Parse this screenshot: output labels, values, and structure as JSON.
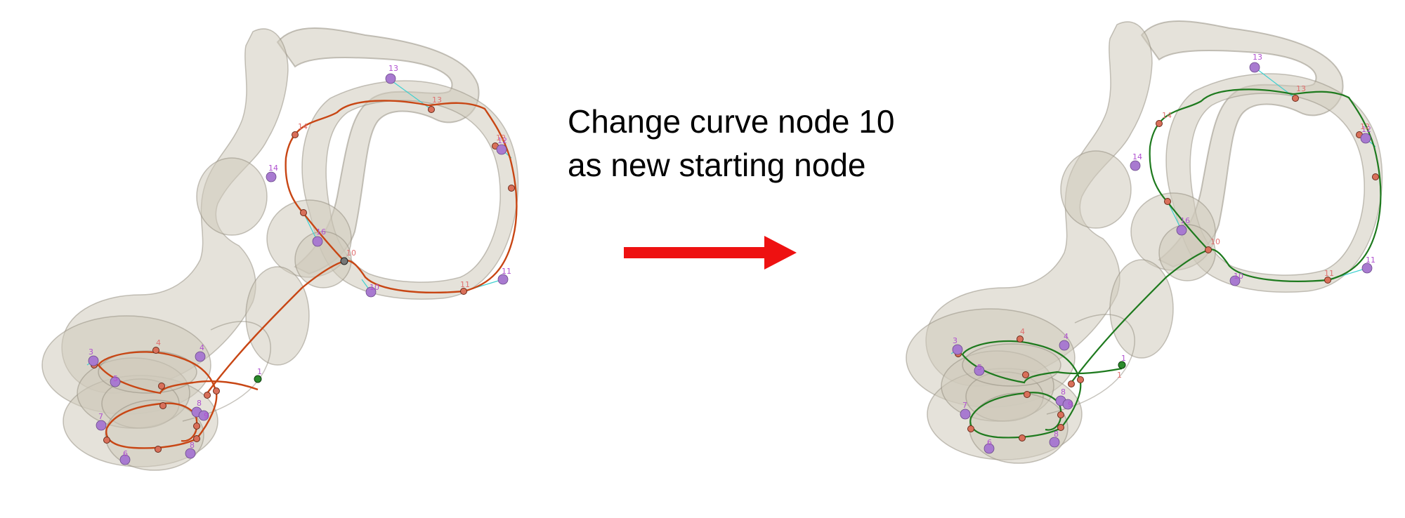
{
  "caption": {
    "line1": "Change curve node 10",
    "line2": "as new starting node"
  },
  "colors": {
    "before_curve": "#c84614",
    "after_curve": "#1e7a1e",
    "curve_node_fill": "#d9705a",
    "landmark_fill": "#a87ad0",
    "landmark_label": "#b050d0",
    "curve_label": "#e07070",
    "guide_line": "#40d0d0",
    "arrow": "#ee1111",
    "organ_fill": "#cfcabb",
    "organ_stroke": "#8f8a7c"
  },
  "panels": {
    "before": {
      "name": "before",
      "start_node_color": "#2b8a2b",
      "landmarks": [
        "1",
        "3",
        "4",
        "5",
        "6",
        "7",
        "8",
        "9",
        "10",
        "11",
        "12",
        "13",
        "14",
        "16"
      ],
      "curve_nodes": [
        "1",
        "4",
        "10",
        "11",
        "12",
        "13",
        "14"
      ]
    },
    "after": {
      "name": "after",
      "start_node_color": "#2b8a2b",
      "landmarks": [
        "1",
        "3",
        "4",
        "5",
        "6",
        "7",
        "8",
        "9",
        "10",
        "11",
        "12",
        "13",
        "14",
        "16"
      ],
      "curve_nodes": [
        "1",
        "4",
        "10",
        "11",
        "12",
        "13",
        "14"
      ]
    }
  }
}
